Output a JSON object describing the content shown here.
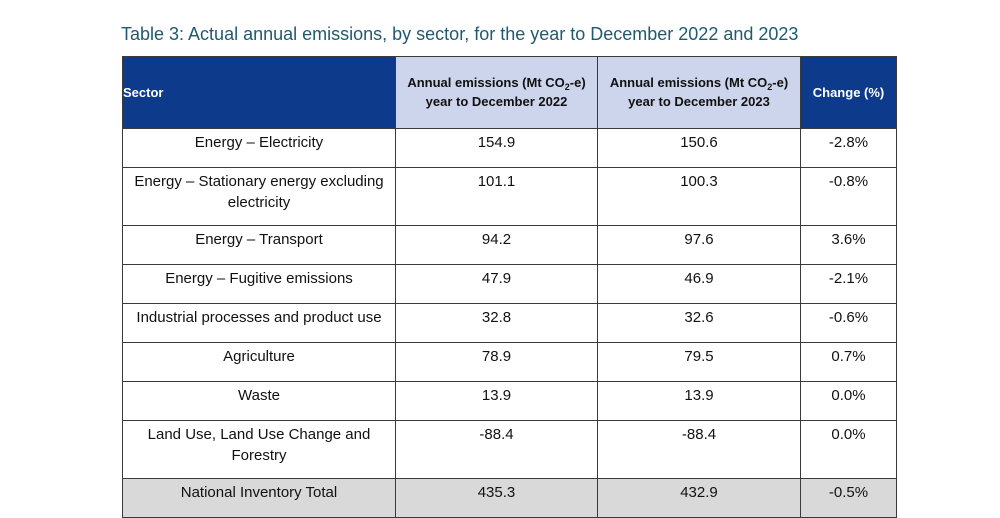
{
  "caption": "Table 3: Actual annual emissions, by sector, for the year to December 2022 and 2023",
  "header": {
    "sector": "Sector",
    "col2022_line1_pre": "Annual emissions (Mt CO",
    "col2022_sub": "2",
    "col2022_line1_post": "-e)",
    "col2022_line2": "year to December 2022",
    "col2023_line1_pre": "Annual emissions (Mt CO",
    "col2023_sub": "2",
    "col2023_line1_post": "-e)",
    "col2023_line2": "year to December 2023",
    "change": "Change (%)"
  },
  "rows": [
    {
      "sector": "Energy – Electricity",
      "y2022": "154.9",
      "y2023": "150.6",
      "change": "-2.8%"
    },
    {
      "sector": "Energy – Stationary energy excluding electricity",
      "y2022": "101.1",
      "y2023": "100.3",
      "change": "-0.8%"
    },
    {
      "sector": "Energy – Transport",
      "y2022": "94.2",
      "y2023": "97.6",
      "change": "3.6%"
    },
    {
      "sector": "Energy – Fugitive emissions",
      "y2022": "47.9",
      "y2023": "46.9",
      "change": "-2.1%"
    },
    {
      "sector": "Industrial processes and product use",
      "y2022": "32.8",
      "y2023": "32.6",
      "change": "-0.6%"
    },
    {
      "sector": "Agriculture",
      "y2022": "78.9",
      "y2023": "79.5",
      "change": "0.7%"
    },
    {
      "sector": "Waste",
      "y2022": "13.9",
      "y2023": "13.9",
      "change": "0.0%"
    },
    {
      "sector": "Land Use, Land Use Change and Forestry",
      "y2022": "-88.4",
      "y2023": "-88.4",
      "change": "0.0%"
    }
  ],
  "total": {
    "sector": "National Inventory Total",
    "y2022": "435.3",
    "y2023": "432.9",
    "change": "-0.5%"
  }
}
